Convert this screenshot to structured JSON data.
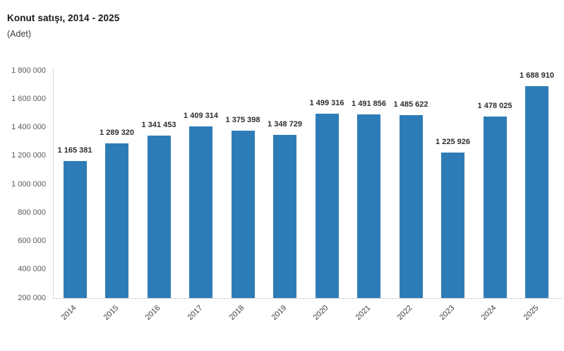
{
  "chart_data": {
    "type": "bar",
    "title": "Konut satışı, 2014 - 2025",
    "subtitle": "(Adet)",
    "categories": [
      "2014",
      "2015",
      "2016",
      "2017",
      "2018",
      "2019",
      "2020",
      "2021",
      "2022",
      "2023",
      "2024",
      "2025"
    ],
    "values": [
      1165381,
      1289320,
      1341453,
      1409314,
      1375398,
      1348729,
      1499316,
      1491856,
      1485622,
      1225926,
      1478025,
      1688910
    ],
    "value_labels": [
      "1 165 381",
      "1 289 320",
      "1 341 453",
      "1 409 314",
      "1 375 398",
      "1 348 729",
      "1 499 316",
      "1 491 856",
      "1 485 622",
      "1 225 926",
      "1 478 025",
      "1 688 910"
    ],
    "xlabel": "",
    "ylabel": "",
    "ylim": [
      200000,
      1800000
    ],
    "ytick_step": 200000,
    "ytick_labels": [
      "200 000",
      "400 000",
      "600 000",
      "800 000",
      "1 000 000",
      "1 200 000",
      "1 400 000",
      "1 600 000",
      "1 800 000"
    ],
    "grid": false,
    "legend": "none",
    "bar_color": "#2e7cb7",
    "axis_color": "#d9d9d9",
    "value_label_color": "#2d2d2d",
    "tick_label_color": "#595959"
  }
}
